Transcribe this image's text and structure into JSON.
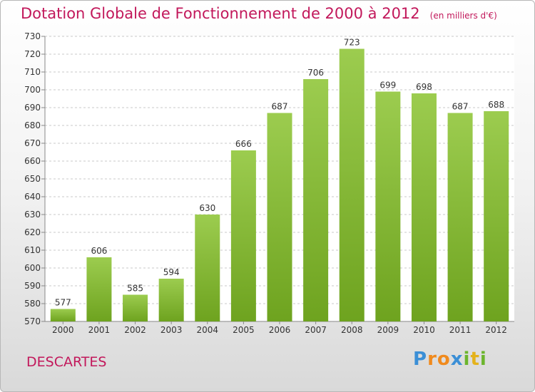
{
  "title": "Dotation Globale de Fonctionnement de 2000 à 2012",
  "unit": "(en milliers d'€)",
  "city": "DESCARTES",
  "logo": {
    "letters": [
      "P",
      "r",
      "o",
      "x",
      "i",
      "t",
      "i"
    ],
    "colors": [
      "#3b8fd6",
      "#f08a1d",
      "#f08a1d",
      "#3b8fd6",
      "#6cb52d",
      "#e4b21b",
      "#6cb52d"
    ]
  },
  "colors": {
    "bar_light": "#9ccc4f",
    "bar_dark": "#6ea31f",
    "accent": "#c2185b"
  },
  "chart_data": {
    "type": "bar",
    "categories": [
      "2000",
      "2001",
      "2002",
      "2003",
      "2004",
      "2005",
      "2006",
      "2007",
      "2008",
      "2009",
      "2010",
      "2011",
      "2012"
    ],
    "values": [
      577,
      606,
      585,
      594,
      630,
      666,
      687,
      706,
      723,
      699,
      698,
      687,
      688
    ],
    "ylim": [
      570,
      730
    ],
    "yticks": [
      570,
      580,
      590,
      600,
      610,
      620,
      630,
      640,
      650,
      660,
      670,
      680,
      690,
      700,
      710,
      720,
      730
    ],
    "grid": true,
    "data_labels": true
  }
}
